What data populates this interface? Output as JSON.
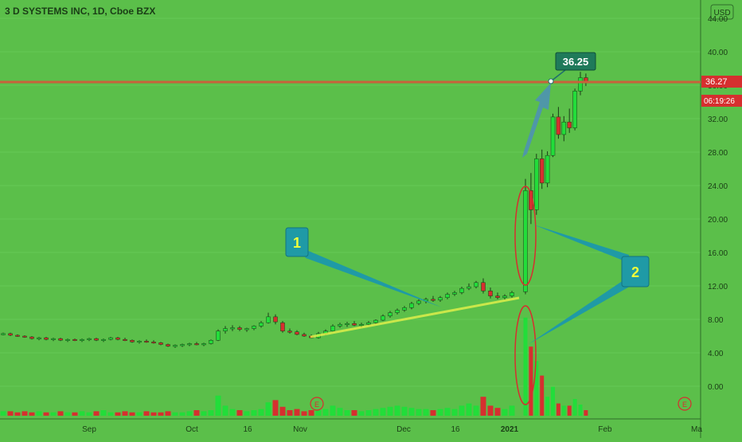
{
  "header": {
    "title": "3 D SYSTEMS INC, 1D, Cboe BZX",
    "currency": "USD"
  },
  "price_axis": {
    "ticks": [
      "0.00",
      "4.00",
      "8.00",
      "12.00",
      "16.00",
      "20.00",
      "24.00",
      "28.00",
      "32.00",
      "36.00",
      "40.00",
      "44.00"
    ],
    "last_price": "36.27",
    "countdown": "06:19:26"
  },
  "time_axis": {
    "labels": [
      "Sep",
      "Oct",
      "16",
      "Nov",
      "Dec",
      "16",
      "2021",
      "Feb",
      "Ma"
    ]
  },
  "annotations": {
    "label_1": "1",
    "label_2": "2",
    "callout_price": "36.25",
    "earnings_marker": "E"
  },
  "colors": {
    "background": "#5bbf4a",
    "up": "#22dd3a",
    "down": "#d62f2f",
    "resistance": "#c8623b",
    "callout": "#1f9aa6",
    "trendline": "#e6f24a"
  },
  "chart_data": {
    "type": "candlestick",
    "title": "3 D SYSTEMS INC, 1D, Cboe BZX",
    "ylim": [
      -3.5,
      45
    ],
    "series": [
      {
        "name": "price",
        "values": [
          [
            6.3,
            6.4,
            6.1,
            6.3
          ],
          [
            6.3,
            6.4,
            6.0,
            6.1
          ],
          [
            6.1,
            6.2,
            5.9,
            6.0
          ],
          [
            6.0,
            6.1,
            5.8,
            5.9
          ],
          [
            5.9,
            6.0,
            5.6,
            5.7
          ],
          [
            5.7,
            5.9,
            5.5,
            5.8
          ],
          [
            5.8,
            5.9,
            5.5,
            5.6
          ],
          [
            5.6,
            5.8,
            5.4,
            5.7
          ],
          [
            5.7,
            5.8,
            5.4,
            5.5
          ],
          [
            5.5,
            5.7,
            5.3,
            5.6
          ],
          [
            5.6,
            5.7,
            5.4,
            5.5
          ],
          [
            5.5,
            5.7,
            5.3,
            5.6
          ],
          [
            5.6,
            5.8,
            5.4,
            5.7
          ],
          [
            5.7,
            5.8,
            5.4,
            5.5
          ],
          [
            5.5,
            5.7,
            5.3,
            5.6
          ],
          [
            5.6,
            5.9,
            5.5,
            5.8
          ],
          [
            5.8,
            5.9,
            5.5,
            5.6
          ],
          [
            5.6,
            5.8,
            5.4,
            5.5
          ],
          [
            5.5,
            5.6,
            5.2,
            5.3
          ],
          [
            5.3,
            5.5,
            5.1,
            5.4
          ],
          [
            5.4,
            5.6,
            5.2,
            5.3
          ],
          [
            5.3,
            5.5,
            5.1,
            5.2
          ],
          [
            5.2,
            5.3,
            4.9,
            5.0
          ],
          [
            5.0,
            5.1,
            4.7,
            4.8
          ],
          [
            4.8,
            5.0,
            4.6,
            4.9
          ],
          [
            4.9,
            5.1,
            4.7,
            5.0
          ],
          [
            5.0,
            5.2,
            4.8,
            5.1
          ],
          [
            5.1,
            5.3,
            4.9,
            5.0
          ],
          [
            5.0,
            5.2,
            4.8,
            5.1
          ],
          [
            5.1,
            5.6,
            5.0,
            5.5
          ],
          [
            5.5,
            6.8,
            5.4,
            6.6
          ],
          [
            6.6,
            7.2,
            6.3,
            6.9
          ],
          [
            6.9,
            7.3,
            6.6,
            7.0
          ],
          [
            7.0,
            7.2,
            6.6,
            6.8
          ],
          [
            6.8,
            7.0,
            6.5,
            6.9
          ],
          [
            6.9,
            7.3,
            6.7,
            7.2
          ],
          [
            7.2,
            7.8,
            7.0,
            7.6
          ],
          [
            7.6,
            8.8,
            7.5,
            8.3
          ],
          [
            8.3,
            8.6,
            7.4,
            7.7
          ],
          [
            7.6,
            7.8,
            6.4,
            6.6
          ],
          [
            6.6,
            6.9,
            6.3,
            6.5
          ],
          [
            6.5,
            6.7,
            6.1,
            6.2
          ],
          [
            6.2,
            6.4,
            5.9,
            6.0
          ],
          [
            6.0,
            6.2,
            5.7,
            5.8
          ],
          [
            5.8,
            6.5,
            5.7,
            6.3
          ],
          [
            6.3,
            6.8,
            6.1,
            6.6
          ],
          [
            6.6,
            7.4,
            6.5,
            7.2
          ],
          [
            7.2,
            7.6,
            7.0,
            7.4
          ],
          [
            7.4,
            7.7,
            7.1,
            7.5
          ],
          [
            7.5,
            7.8,
            7.2,
            7.3
          ],
          [
            7.3,
            7.6,
            7.0,
            7.4
          ],
          [
            7.4,
            7.8,
            7.2,
            7.6
          ],
          [
            7.6,
            8.0,
            7.4,
            7.9
          ],
          [
            7.9,
            8.6,
            7.8,
            8.4
          ],
          [
            8.4,
            9.0,
            8.2,
            8.8
          ],
          [
            8.8,
            9.3,
            8.6,
            9.1
          ],
          [
            9.1,
            9.6,
            8.9,
            9.4
          ],
          [
            9.4,
            10.1,
            9.2,
            9.9
          ],
          [
            9.9,
            10.4,
            9.7,
            10.2
          ],
          [
            10.2,
            10.6,
            9.9,
            10.4
          ],
          [
            10.4,
            10.8,
            10.1,
            10.3
          ],
          [
            10.3,
            10.8,
            10.1,
            10.6
          ],
          [
            10.6,
            11.2,
            10.4,
            11.0
          ],
          [
            11.0,
            11.4,
            10.8,
            11.2
          ],
          [
            11.2,
            11.9,
            11.0,
            11.7
          ],
          [
            11.7,
            12.3,
            11.5,
            11.9
          ],
          [
            11.9,
            12.6,
            11.7,
            12.4
          ],
          [
            12.4,
            12.9,
            11.1,
            11.4
          ],
          [
            11.4,
            11.8,
            10.5,
            10.8
          ],
          [
            10.8,
            11.2,
            10.4,
            10.6
          ],
          [
            10.6,
            11.0,
            10.3,
            10.8
          ],
          [
            10.8,
            11.4,
            10.6,
            11.2
          ],
          [
            11.3,
            24.8,
            11.0,
            23.4
          ],
          [
            23.4,
            25.5,
            19.4,
            21.1
          ],
          [
            21.1,
            27.8,
            20.5,
            27.2
          ],
          [
            27.2,
            28.3,
            23.6,
            24.3
          ],
          [
            24.3,
            28.1,
            23.8,
            27.6
          ],
          [
            27.6,
            32.6,
            27.4,
            32.2
          ],
          [
            32.2,
            33.4,
            29.6,
            30.1
          ],
          [
            30.1,
            32.3,
            29.3,
            31.6
          ],
          [
            31.6,
            33.2,
            30.3,
            30.9
          ],
          [
            30.9,
            35.6,
            30.6,
            35.3
          ],
          [
            35.3,
            37.6,
            34.8,
            36.9
          ],
          [
            36.9,
            37.4,
            35.9,
            36.27
          ]
        ]
      },
      {
        "name": "volume",
        "values": [
          0.4,
          0.4,
          0.3,
          0.4,
          0.3,
          0.4,
          0.3,
          0.3,
          0.4,
          0.3,
          0.3,
          0.4,
          0.3,
          0.4,
          0.5,
          0.3,
          0.3,
          0.4,
          0.3,
          0.3,
          0.4,
          0.3,
          0.3,
          0.4,
          0.3,
          0.3,
          0.4,
          0.5,
          0.4,
          0.5,
          1.8,
          0.9,
          0.6,
          0.5,
          0.4,
          0.5,
          0.6,
          1.2,
          1.4,
          0.8,
          0.5,
          0.6,
          0.4,
          0.5,
          0.5,
          0.6,
          0.9,
          0.7,
          0.5,
          0.5,
          0.4,
          0.5,
          0.6,
          0.7,
          0.8,
          0.9,
          0.8,
          0.7,
          0.6,
          0.6,
          0.5,
          0.6,
          0.7,
          0.6,
          0.9,
          1.1,
          0.9,
          1.7,
          0.9,
          0.7,
          0.6,
          0.9,
          8.8,
          6.2,
          4.9,
          3.6,
          1.7,
          2.6,
          1.1,
          0.9,
          0.9,
          1.5,
          1.0,
          0.5
        ]
      }
    ]
  }
}
